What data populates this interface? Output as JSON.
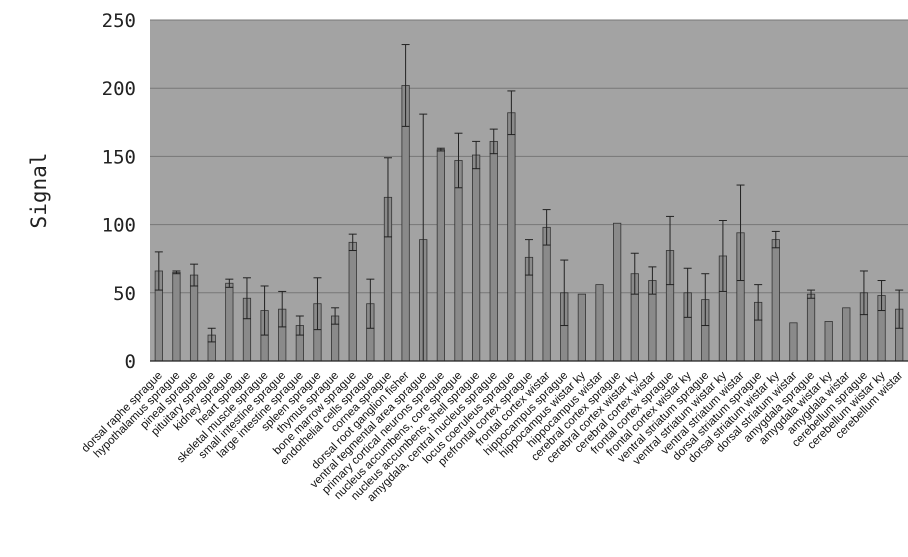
{
  "chart_data": {
    "type": "bar",
    "title": "",
    "xlabel": "",
    "ylabel": "Signal",
    "ylim": [
      0,
      250
    ],
    "yticks": [
      0,
      50,
      100,
      150,
      200,
      250
    ],
    "grid": true,
    "legend": "none",
    "colors": {
      "plot_bg": "#a3a3a3",
      "bar": "#8a8a8a",
      "grid": "#777777"
    },
    "categories": [
      "dorsal raphe sprague",
      "hypothalamus sprague",
      "pineal sprague",
      "pituitary sprague",
      "kidney sprague",
      "heart sprague",
      "skeletal muscle sprague",
      "small intestine sprague",
      "large intestine sprague",
      "spleen sprague",
      "thymus sprague",
      "bone marrow sprague",
      "endothelial cells sprague",
      "cornea sprague",
      "dorsal root ganglion fisher",
      "ventral tegmental area sprague",
      "primary cortical neurons sprague",
      "nucleus accumbens, core sprague",
      "nucleus accumbens, shell sprague",
      "amygdala, central nucleus sprague",
      "locus coeruleus sprague",
      "prefrontal cortex sprague",
      "frontal cortex wistar",
      "hippocampus sprague",
      "hippocampus wistar ky",
      "hippocampus wistar",
      "cerebral cortex sprague",
      "cerebral cortex wistar ky",
      "cerebral cortex wistar",
      "frontal cortex sprague",
      "frontal cortex wistar ky",
      "ventral striatum sprague",
      "ventral striatum wistar ky",
      "ventral striatum wistar",
      "dorsal striatum sprague",
      "dorsal striatum wistar ky",
      "dorsal striatum wistar",
      "amygdala sprague",
      "amygdala wistar ky",
      "amygdala wistar",
      "cerebellum sprague",
      "cerebellum wistar ky",
      "cerebellum wistar"
    ],
    "values": [
      66,
      65,
      63,
      19,
      57,
      46,
      37,
      38,
      26,
      42,
      33,
      87,
      42,
      120,
      202,
      89,
      155,
      147,
      151,
      161,
      182,
      76,
      98,
      50,
      49,
      56,
      101,
      64,
      59,
      81,
      50,
      45,
      77,
      94,
      43,
      89,
      28,
      49,
      29,
      39,
      50,
      48,
      38
    ],
    "error_bars": [
      14,
      1,
      8,
      5,
      3,
      15,
      18,
      13,
      7,
      19,
      6,
      6,
      18,
      29,
      30,
      92,
      1,
      20,
      10,
      9,
      16,
      13,
      13,
      24,
      0,
      0,
      0,
      15,
      10,
      25,
      18,
      19,
      26,
      35,
      13,
      6,
      0,
      3,
      0,
      0,
      16,
      11,
      14
    ]
  }
}
